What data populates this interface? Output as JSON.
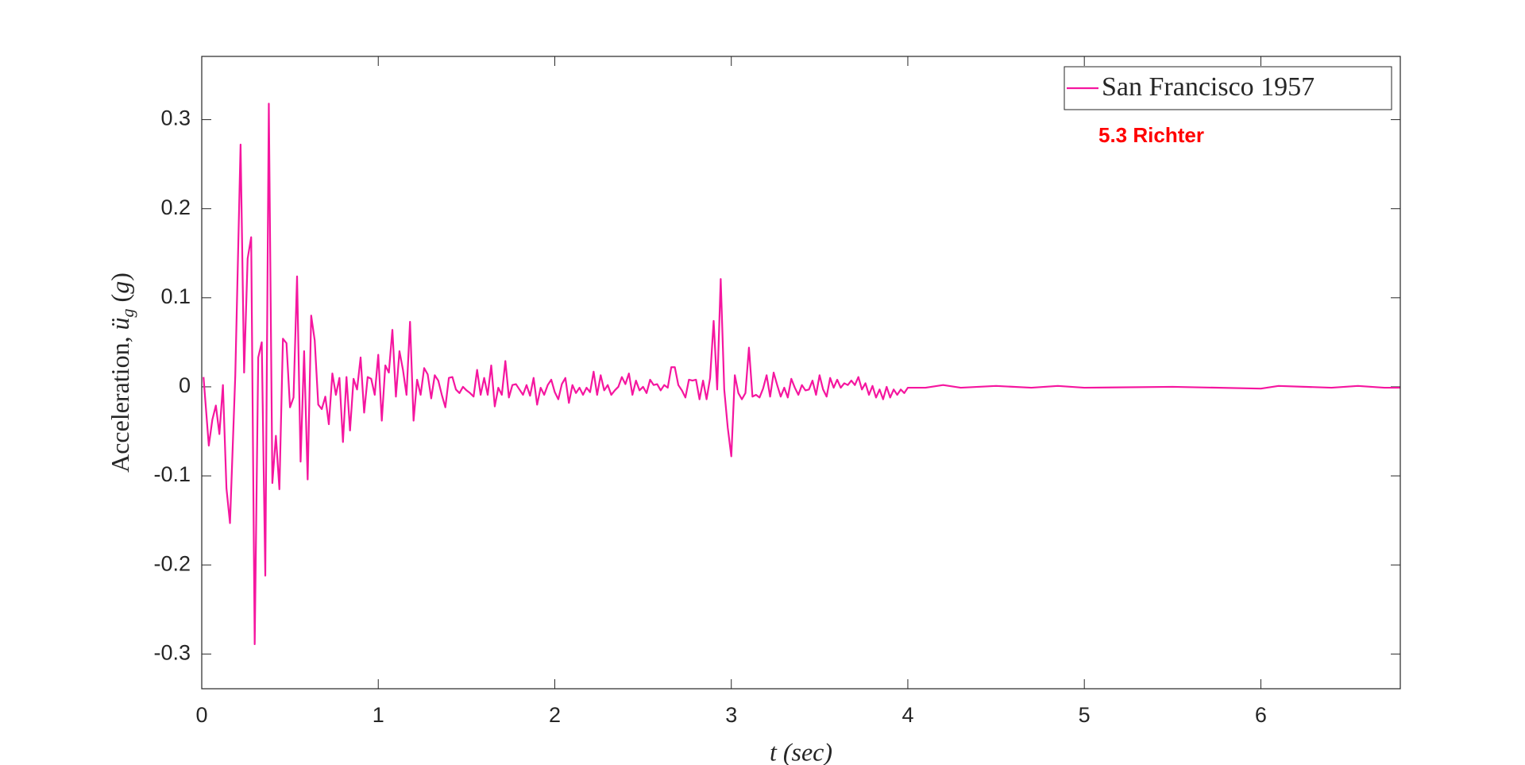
{
  "chart_data": {
    "type": "line",
    "xlabel": "t (sec)",
    "ylabel": [
      "Acceleration, ",
      "ü",
      "g",
      " (",
      "g",
      ")"
    ],
    "annotation": {
      "text": "5.3 Richter",
      "color": "#ff0000"
    },
    "legend": "northeast",
    "xlim": [
      0,
      6.79
    ],
    "xticks": [
      0,
      1,
      2,
      3,
      4,
      5,
      6
    ],
    "ylim": [
      -0.339,
      0.371
    ],
    "yticks": [
      -0.3,
      -0.2,
      -0.1,
      0,
      0.1,
      0.2,
      0.3
    ],
    "x": [
      0.01,
      0.04,
      0.06,
      0.08,
      0.1,
      0.12,
      0.14,
      0.16,
      0.19,
      0.22,
      0.24,
      0.26,
      0.28,
      0.3,
      0.32,
      0.34,
      0.36,
      0.38,
      0.4,
      0.42,
      0.44,
      0.46,
      0.48,
      0.5,
      0.52,
      0.54,
      0.56,
      0.58,
      0.6,
      0.62,
      0.64,
      0.66,
      0.68,
      0.7,
      0.72,
      0.74,
      0.76,
      0.78,
      0.8,
      0.82,
      0.84,
      0.86,
      0.88,
      0.9,
      0.92,
      0.94,
      0.96,
      0.98,
      1.0,
      1.02,
      1.04,
      1.06,
      1.08,
      1.1,
      1.12,
      1.14,
      1.16,
      1.18,
      1.2,
      1.22,
      1.24,
      1.26,
      1.28,
      1.3,
      1.32,
      1.34,
      1.36,
      1.38,
      1.4,
      1.42,
      1.44,
      1.46,
      1.48,
      1.5,
      1.52,
      1.54,
      1.56,
      1.58,
      1.6,
      1.62,
      1.64,
      1.66,
      1.68,
      1.7,
      1.72,
      1.74,
      1.76,
      1.78,
      1.8,
      1.82,
      1.84,
      1.86,
      1.88,
      1.9,
      1.92,
      1.94,
      1.96,
      1.98,
      2.0,
      2.02,
      2.04,
      2.06,
      2.08,
      2.1,
      2.12,
      2.14,
      2.16,
      2.18,
      2.2,
      2.22,
      2.24,
      2.26,
      2.28,
      2.3,
      2.32,
      2.34,
      2.36,
      2.38,
      2.4,
      2.42,
      2.44,
      2.46,
      2.48,
      2.5,
      2.52,
      2.54,
      2.56,
      2.58,
      2.6,
      2.62,
      2.64,
      2.66,
      2.68,
      2.7,
      2.72,
      2.74,
      2.76,
      2.78,
      2.8,
      2.82,
      2.84,
      2.86,
      2.88,
      2.9,
      2.92,
      2.94,
      2.96,
      2.98,
      3.0,
      3.02,
      3.04,
      3.06,
      3.08,
      3.1,
      3.12,
      3.14,
      3.16,
      3.18,
      3.2,
      3.22,
      3.24,
      3.26,
      3.28,
      3.3,
      3.32,
      3.34,
      3.36,
      3.38,
      3.4,
      3.42,
      3.44,
      3.46,
      3.48,
      3.5,
      3.52,
      3.54,
      3.56,
      3.58,
      3.6,
      3.62,
      3.64,
      3.66,
      3.68,
      3.7,
      3.72,
      3.74,
      3.76,
      3.78,
      3.8,
      3.82,
      3.84,
      3.86,
      3.88,
      3.9,
      3.92,
      3.94,
      3.96,
      3.98,
      4.0,
      4.1,
      4.2,
      4.3,
      4.5,
      4.7,
      4.85,
      5.0,
      5.5,
      6.0,
      6.1,
      6.4,
      6.55,
      6.7,
      6.79
    ],
    "series": [
      {
        "name": "San Francisco 1957",
        "color": "#f5169f",
        "values": [
          0.011,
          -0.066,
          -0.037,
          -0.021,
          -0.053,
          0.002,
          -0.114,
          -0.153,
          0.013,
          0.272,
          0.016,
          0.144,
          0.168,
          -0.289,
          0.033,
          0.05,
          -0.212,
          0.318,
          -0.108,
          -0.055,
          -0.115,
          0.054,
          0.049,
          -0.023,
          -0.012,
          0.124,
          -0.084,
          0.04,
          -0.104,
          0.08,
          0.052,
          -0.02,
          -0.025,
          -0.011,
          -0.042,
          0.015,
          -0.009,
          0.01,
          -0.062,
          0.011,
          -0.049,
          0.009,
          -0.003,
          0.033,
          -0.029,
          0.011,
          0.009,
          -0.009,
          0.036,
          -0.038,
          0.024,
          0.016,
          0.064,
          -0.011,
          0.04,
          0.019,
          -0.009,
          0.073,
          -0.038,
          0.008,
          -0.009,
          0.021,
          0.014,
          -0.013,
          0.013,
          0.007,
          -0.009,
          -0.023,
          0.01,
          0.011,
          -0.003,
          -0.007,
          0.0,
          -0.004,
          -0.007,
          -0.011,
          0.019,
          -0.009,
          0.01,
          -0.009,
          0.024,
          -0.022,
          -0.001,
          -0.009,
          0.029,
          -0.012,
          0.002,
          0.003,
          -0.003,
          -0.009,
          0.002,
          -0.01,
          0.01,
          -0.02,
          -0.001,
          -0.009,
          0.002,
          0.008,
          -0.006,
          -0.014,
          0.003,
          0.01,
          -0.018,
          0.002,
          -0.007,
          -0.001,
          -0.009,
          -0.001,
          -0.006,
          0.017,
          -0.009,
          0.013,
          -0.004,
          0.002,
          -0.009,
          -0.004,
          0.0,
          0.011,
          0.003,
          0.015,
          -0.009,
          0.007,
          -0.004,
          0.0,
          -0.007,
          0.008,
          0.002,
          0.003,
          -0.004,
          0.002,
          -0.001,
          0.022,
          0.022,
          0.002,
          -0.004,
          -0.012,
          0.008,
          0.007,
          0.008,
          -0.014,
          0.007,
          -0.014,
          0.01,
          0.074,
          -0.003,
          0.121,
          -0.003,
          -0.046,
          -0.078,
          0.013,
          -0.007,
          -0.014,
          -0.007,
          0.044,
          -0.011,
          -0.009,
          -0.012,
          -0.002,
          0.013,
          -0.011,
          0.016,
          0.002,
          -0.011,
          -0.001,
          -0.012,
          0.009,
          -0.001,
          -0.009,
          0.002,
          -0.004,
          -0.003,
          0.007,
          -0.009,
          0.013,
          -0.003,
          -0.011,
          0.01,
          -0.001,
          0.008,
          -0.001,
          0.004,
          0.002,
          0.007,
          0.002,
          0.011,
          -0.003,
          0.004,
          -0.009,
          0.001,
          -0.012,
          -0.003,
          -0.014,
          0.0,
          -0.012,
          -0.003,
          -0.009,
          -0.003,
          -0.007,
          -0.001,
          -0.001,
          0.002,
          -0.001,
          0.001,
          -0.001,
          0.001,
          -0.001,
          0.0,
          -0.002,
          0.001,
          -0.001,
          0.001,
          -0.001,
          -0.001
        ]
      }
    ]
  }
}
